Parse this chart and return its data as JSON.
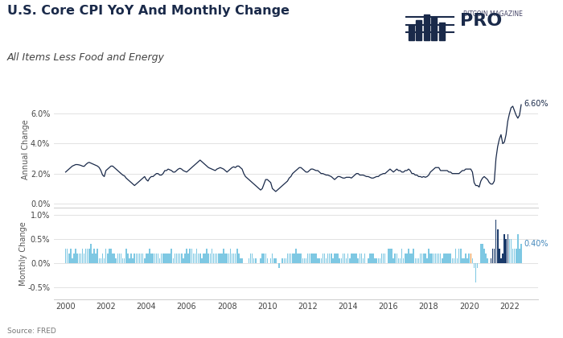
{
  "title": "U.S. Core CPI YoY And Monthly Change",
  "subtitle": "All Items Less Food and Energy",
  "source": "Source: FRED",
  "yoy_label": "Annual Change",
  "mom_label": "Monthly Change",
  "bg_color": "#ffffff",
  "line_color": "#1a2a4a",
  "bar_color_normal": "#7ec8e3",
  "bar_color_highlight": "#1a3a6a",
  "bar_color_orange": "#e8903a",
  "yoy_ylim": [
    -0.3,
    7.5
  ],
  "mom_ylim": [
    -0.75,
    1.15
  ],
  "yoy_yticks": [
    0.0,
    2.0,
    4.0,
    6.0
  ],
  "mom_yticks": [
    -0.5,
    0.0,
    0.5,
    1.0
  ],
  "annotation_yoy": "6.60%",
  "annotation_mom": "0.40%",
  "xlim": [
    1999.4,
    2023.4
  ],
  "xticks": [
    2000,
    2002,
    2004,
    2006,
    2008,
    2010,
    2012,
    2014,
    2016,
    2018,
    2020,
    2022
  ],
  "dates_yoy": [
    2000.0,
    2000.083,
    2000.167,
    2000.25,
    2000.333,
    2000.417,
    2000.5,
    2000.583,
    2000.667,
    2000.75,
    2000.833,
    2000.917,
    2001.0,
    2001.083,
    2001.167,
    2001.25,
    2001.333,
    2001.417,
    2001.5,
    2001.583,
    2001.667,
    2001.75,
    2001.833,
    2001.917,
    2002.0,
    2002.083,
    2002.167,
    2002.25,
    2002.333,
    2002.417,
    2002.5,
    2002.583,
    2002.667,
    2002.75,
    2002.833,
    2002.917,
    2003.0,
    2003.083,
    2003.167,
    2003.25,
    2003.333,
    2003.417,
    2003.5,
    2003.583,
    2003.667,
    2003.75,
    2003.833,
    2003.917,
    2004.0,
    2004.083,
    2004.167,
    2004.25,
    2004.333,
    2004.417,
    2004.5,
    2004.583,
    2004.667,
    2004.75,
    2004.833,
    2004.917,
    2005.0,
    2005.083,
    2005.167,
    2005.25,
    2005.333,
    2005.417,
    2005.5,
    2005.583,
    2005.667,
    2005.75,
    2005.833,
    2005.917,
    2006.0,
    2006.083,
    2006.167,
    2006.25,
    2006.333,
    2006.417,
    2006.5,
    2006.583,
    2006.667,
    2006.75,
    2006.833,
    2006.917,
    2007.0,
    2007.083,
    2007.167,
    2007.25,
    2007.333,
    2007.417,
    2007.5,
    2007.583,
    2007.667,
    2007.75,
    2007.833,
    2007.917,
    2008.0,
    2008.083,
    2008.167,
    2008.25,
    2008.333,
    2008.417,
    2008.5,
    2008.583,
    2008.667,
    2008.75,
    2008.833,
    2008.917,
    2009.0,
    2009.083,
    2009.167,
    2009.25,
    2009.333,
    2009.417,
    2009.5,
    2009.583,
    2009.667,
    2009.75,
    2009.833,
    2009.917,
    2010.0,
    2010.083,
    2010.167,
    2010.25,
    2010.333,
    2010.417,
    2010.5,
    2010.583,
    2010.667,
    2010.75,
    2010.833,
    2010.917,
    2011.0,
    2011.083,
    2011.167,
    2011.25,
    2011.333,
    2011.417,
    2011.5,
    2011.583,
    2011.667,
    2011.75,
    2011.833,
    2011.917,
    2012.0,
    2012.083,
    2012.167,
    2012.25,
    2012.333,
    2012.417,
    2012.5,
    2012.583,
    2012.667,
    2012.75,
    2012.833,
    2012.917,
    2013.0,
    2013.083,
    2013.167,
    2013.25,
    2013.333,
    2013.417,
    2013.5,
    2013.583,
    2013.667,
    2013.75,
    2013.833,
    2013.917,
    2014.0,
    2014.083,
    2014.167,
    2014.25,
    2014.333,
    2014.417,
    2014.5,
    2014.583,
    2014.667,
    2014.75,
    2014.833,
    2014.917,
    2015.0,
    2015.083,
    2015.167,
    2015.25,
    2015.333,
    2015.417,
    2015.5,
    2015.583,
    2015.667,
    2015.75,
    2015.833,
    2015.917,
    2016.0,
    2016.083,
    2016.167,
    2016.25,
    2016.333,
    2016.417,
    2016.5,
    2016.583,
    2016.667,
    2016.75,
    2016.833,
    2016.917,
    2017.0,
    2017.083,
    2017.167,
    2017.25,
    2017.333,
    2017.417,
    2017.5,
    2017.583,
    2017.667,
    2017.75,
    2017.833,
    2017.917,
    2018.0,
    2018.083,
    2018.167,
    2018.25,
    2018.333,
    2018.417,
    2018.5,
    2018.583,
    2018.667,
    2018.75,
    2018.833,
    2018.917,
    2019.0,
    2019.083,
    2019.167,
    2019.25,
    2019.333,
    2019.417,
    2019.5,
    2019.583,
    2019.667,
    2019.75,
    2019.833,
    2019.917,
    2020.0,
    2020.083,
    2020.167,
    2020.25,
    2020.333,
    2020.417,
    2020.5,
    2020.583,
    2020.667,
    2020.75,
    2020.833,
    2020.917,
    2021.0,
    2021.083,
    2021.167,
    2021.25,
    2021.333,
    2021.417,
    2021.5,
    2021.583,
    2021.667,
    2021.75,
    2021.833,
    2021.917,
    2022.0,
    2022.083,
    2022.167,
    2022.25,
    2022.333,
    2022.417,
    2022.5,
    2022.583
  ],
  "values_yoy": [
    2.1,
    2.2,
    2.3,
    2.4,
    2.5,
    2.55,
    2.6,
    2.6,
    2.58,
    2.55,
    2.5,
    2.48,
    2.6,
    2.7,
    2.75,
    2.7,
    2.65,
    2.6,
    2.55,
    2.5,
    2.4,
    2.2,
    1.9,
    1.8,
    2.2,
    2.3,
    2.4,
    2.5,
    2.5,
    2.4,
    2.3,
    2.2,
    2.1,
    2.0,
    1.9,
    1.85,
    1.7,
    1.6,
    1.5,
    1.4,
    1.3,
    1.2,
    1.3,
    1.4,
    1.5,
    1.6,
    1.7,
    1.8,
    1.6,
    1.5,
    1.7,
    1.8,
    1.8,
    1.9,
    2.0,
    2.0,
    1.9,
    1.9,
    2.0,
    2.2,
    2.2,
    2.3,
    2.25,
    2.2,
    2.1,
    2.1,
    2.2,
    2.3,
    2.35,
    2.3,
    2.2,
    2.15,
    2.1,
    2.2,
    2.3,
    2.4,
    2.5,
    2.6,
    2.7,
    2.8,
    2.9,
    2.8,
    2.7,
    2.6,
    2.5,
    2.4,
    2.35,
    2.3,
    2.25,
    2.2,
    2.3,
    2.35,
    2.4,
    2.35,
    2.3,
    2.2,
    2.1,
    2.2,
    2.3,
    2.4,
    2.45,
    2.4,
    2.5,
    2.5,
    2.4,
    2.3,
    2.0,
    1.8,
    1.7,
    1.6,
    1.5,
    1.4,
    1.3,
    1.2,
    1.1,
    1.0,
    0.9,
    1.0,
    1.3,
    1.6,
    1.6,
    1.5,
    1.4,
    1.0,
    0.9,
    0.8,
    0.9,
    1.0,
    1.1,
    1.2,
    1.3,
    1.4,
    1.5,
    1.7,
    1.8,
    2.0,
    2.1,
    2.2,
    2.3,
    2.4,
    2.4,
    2.3,
    2.2,
    2.1,
    2.1,
    2.2,
    2.3,
    2.3,
    2.25,
    2.2,
    2.2,
    2.1,
    2.0,
    2.0,
    1.95,
    1.9,
    1.9,
    1.85,
    1.8,
    1.7,
    1.6,
    1.7,
    1.8,
    1.8,
    1.75,
    1.7,
    1.7,
    1.75,
    1.75,
    1.75,
    1.7,
    1.8,
    1.9,
    2.0,
    2.0,
    1.9,
    1.9,
    1.9,
    1.85,
    1.8,
    1.8,
    1.75,
    1.7,
    1.7,
    1.75,
    1.8,
    1.8,
    1.9,
    1.95,
    2.0,
    2.0,
    2.1,
    2.2,
    2.3,
    2.2,
    2.1,
    2.2,
    2.3,
    2.2,
    2.2,
    2.1,
    2.1,
    2.2,
    2.2,
    2.3,
    2.2,
    2.0,
    2.0,
    1.9,
    1.9,
    1.8,
    1.8,
    1.75,
    1.8,
    1.75,
    1.8,
    1.9,
    2.1,
    2.2,
    2.3,
    2.4,
    2.4,
    2.4,
    2.2,
    2.2,
    2.2,
    2.2,
    2.2,
    2.1,
    2.1,
    2.0,
    2.0,
    2.0,
    2.0,
    2.0,
    2.1,
    2.2,
    2.2,
    2.3,
    2.3,
    2.3,
    2.3,
    2.1,
    1.4,
    1.2,
    1.2,
    1.1,
    1.5,
    1.7,
    1.8,
    1.7,
    1.6,
    1.4,
    1.3,
    1.3,
    1.5,
    3.0,
    3.8,
    4.3,
    4.6,
    4.0,
    4.1,
    4.6,
    5.5,
    6.0,
    6.4,
    6.5,
    6.2,
    5.9,
    5.7,
    5.9,
    6.6
  ],
  "dates_mom": [
    2000.0,
    2000.083,
    2000.167,
    2000.25,
    2000.333,
    2000.417,
    2000.5,
    2000.583,
    2000.667,
    2000.75,
    2000.833,
    2000.917,
    2001.0,
    2001.083,
    2001.167,
    2001.25,
    2001.333,
    2001.417,
    2001.5,
    2001.583,
    2001.667,
    2001.75,
    2001.833,
    2001.917,
    2002.0,
    2002.083,
    2002.167,
    2002.25,
    2002.333,
    2002.417,
    2002.5,
    2002.583,
    2002.667,
    2002.75,
    2002.833,
    2002.917,
    2003.0,
    2003.083,
    2003.167,
    2003.25,
    2003.333,
    2003.417,
    2003.5,
    2003.583,
    2003.667,
    2003.75,
    2003.833,
    2003.917,
    2004.0,
    2004.083,
    2004.167,
    2004.25,
    2004.333,
    2004.417,
    2004.5,
    2004.583,
    2004.667,
    2004.75,
    2004.833,
    2004.917,
    2005.0,
    2005.083,
    2005.167,
    2005.25,
    2005.333,
    2005.417,
    2005.5,
    2005.583,
    2005.667,
    2005.75,
    2005.833,
    2005.917,
    2006.0,
    2006.083,
    2006.167,
    2006.25,
    2006.333,
    2006.417,
    2006.5,
    2006.583,
    2006.667,
    2006.75,
    2006.833,
    2006.917,
    2007.0,
    2007.083,
    2007.167,
    2007.25,
    2007.333,
    2007.417,
    2007.5,
    2007.583,
    2007.667,
    2007.75,
    2007.833,
    2007.917,
    2008.0,
    2008.083,
    2008.167,
    2008.25,
    2008.333,
    2008.417,
    2008.5,
    2008.583,
    2008.667,
    2008.75,
    2008.833,
    2008.917,
    2009.0,
    2009.083,
    2009.167,
    2009.25,
    2009.333,
    2009.417,
    2009.5,
    2009.583,
    2009.667,
    2009.75,
    2009.833,
    2009.917,
    2010.0,
    2010.083,
    2010.167,
    2010.25,
    2010.333,
    2010.417,
    2010.5,
    2010.583,
    2010.667,
    2010.75,
    2010.833,
    2010.917,
    2011.0,
    2011.083,
    2011.167,
    2011.25,
    2011.333,
    2011.417,
    2011.5,
    2011.583,
    2011.667,
    2011.75,
    2011.833,
    2011.917,
    2012.0,
    2012.083,
    2012.167,
    2012.25,
    2012.333,
    2012.417,
    2012.5,
    2012.583,
    2012.667,
    2012.75,
    2012.833,
    2012.917,
    2013.0,
    2013.083,
    2013.167,
    2013.25,
    2013.333,
    2013.417,
    2013.5,
    2013.583,
    2013.667,
    2013.75,
    2013.833,
    2013.917,
    2014.0,
    2014.083,
    2014.167,
    2014.25,
    2014.333,
    2014.417,
    2014.5,
    2014.583,
    2014.667,
    2014.75,
    2014.833,
    2014.917,
    2015.0,
    2015.083,
    2015.167,
    2015.25,
    2015.333,
    2015.417,
    2015.5,
    2015.583,
    2015.667,
    2015.75,
    2015.833,
    2015.917,
    2016.0,
    2016.083,
    2016.167,
    2016.25,
    2016.333,
    2016.417,
    2016.5,
    2016.583,
    2016.667,
    2016.75,
    2016.833,
    2016.917,
    2017.0,
    2017.083,
    2017.167,
    2017.25,
    2017.333,
    2017.417,
    2017.5,
    2017.583,
    2017.667,
    2017.75,
    2017.833,
    2017.917,
    2018.0,
    2018.083,
    2018.167,
    2018.25,
    2018.333,
    2018.417,
    2018.5,
    2018.583,
    2018.667,
    2018.75,
    2018.833,
    2018.917,
    2019.0,
    2019.083,
    2019.167,
    2019.25,
    2019.333,
    2019.417,
    2019.5,
    2019.583,
    2019.667,
    2019.75,
    2019.833,
    2019.917,
    2020.0,
    2020.083,
    2020.167,
    2020.25,
    2020.333,
    2020.417,
    2020.5,
    2020.583,
    2020.667,
    2020.75,
    2020.833,
    2020.917,
    2021.0,
    2021.083,
    2021.167,
    2021.25,
    2021.333,
    2021.417,
    2021.5,
    2021.583,
    2021.667,
    2021.75,
    2021.833,
    2021.917,
    2022.0,
    2022.083,
    2022.167,
    2022.25,
    2022.333,
    2022.417,
    2022.5,
    2022.583
  ],
  "values_mom": [
    0.3,
    0.3,
    0.2,
    0.3,
    0.1,
    0.2,
    0.3,
    0.2,
    0.2,
    0.2,
    0.3,
    0.2,
    0.3,
    0.3,
    0.3,
    0.4,
    0.2,
    0.3,
    0.2,
    0.3,
    0.1,
    0.1,
    0.2,
    0.1,
    0.3,
    0.2,
    0.3,
    0.3,
    0.2,
    0.2,
    0.1,
    0.2,
    0.2,
    0.2,
    0.1,
    0.1,
    0.3,
    0.2,
    0.1,
    0.2,
    0.1,
    0.2,
    0.2,
    0.2,
    0.2,
    0.2,
    0.2,
    0.1,
    0.2,
    0.2,
    0.3,
    0.2,
    0.2,
    0.2,
    0.2,
    0.2,
    0.1,
    0.2,
    0.2,
    0.2,
    0.2,
    0.2,
    0.2,
    0.3,
    0.1,
    0.2,
    0.2,
    0.2,
    0.2,
    0.2,
    0.1,
    0.2,
    0.3,
    0.2,
    0.3,
    0.3,
    0.2,
    0.2,
    0.3,
    0.2,
    0.2,
    0.1,
    0.2,
    0.2,
    0.3,
    0.2,
    0.2,
    0.3,
    0.2,
    0.2,
    0.2,
    0.2,
    0.2,
    0.2,
    0.3,
    0.2,
    0.2,
    0.2,
    0.3,
    0.2,
    0.2,
    0.2,
    0.3,
    0.2,
    0.1,
    0.1,
    0.0,
    0.0,
    0.0,
    0.1,
    0.2,
    0.2,
    0.1,
    0.1,
    0.0,
    0.0,
    0.1,
    0.2,
    0.2,
    0.2,
    0.1,
    0.0,
    0.1,
    0.2,
    0.1,
    0.1,
    0.0,
    -0.1,
    0.0,
    0.1,
    0.1,
    0.1,
    0.2,
    0.2,
    0.2,
    0.2,
    0.2,
    0.3,
    0.2,
    0.2,
    0.2,
    0.1,
    0.1,
    0.1,
    0.2,
    0.2,
    0.2,
    0.2,
    0.2,
    0.2,
    0.1,
    0.1,
    0.1,
    0.2,
    0.2,
    0.1,
    0.2,
    0.2,
    0.2,
    0.1,
    0.2,
    0.2,
    0.2,
    0.1,
    0.1,
    0.2,
    0.2,
    0.1,
    0.2,
    0.1,
    0.2,
    0.2,
    0.2,
    0.2,
    0.1,
    0.2,
    0.2,
    0.1,
    0.2,
    0.0,
    0.1,
    0.2,
    0.2,
    0.2,
    0.1,
    0.1,
    0.1,
    0.1,
    0.2,
    0.2,
    0.2,
    0.0,
    0.3,
    0.3,
    0.3,
    0.1,
    0.2,
    0.2,
    0.1,
    0.1,
    0.3,
    0.1,
    0.2,
    0.2,
    0.3,
    0.2,
    0.2,
    0.3,
    0.1,
    0.1,
    0.1,
    0.2,
    0.2,
    0.2,
    0.2,
    0.1,
    0.3,
    0.2,
    0.2,
    0.2,
    0.2,
    0.2,
    0.2,
    0.2,
    0.1,
    0.2,
    0.2,
    0.2,
    0.2,
    0.2,
    0.1,
    0.1,
    0.3,
    0.1,
    0.3,
    0.3,
    0.1,
    0.1,
    0.2,
    0.1,
    0.2,
    0.2,
    0.1,
    -0.1,
    -0.4,
    -0.1,
    0.0,
    0.4,
    0.4,
    0.3,
    0.2,
    0.1,
    0.0,
    0.1,
    0.3,
    0.3,
    0.9,
    0.7,
    0.3,
    0.1,
    0.2,
    0.6,
    0.5,
    0.6,
    0.5,
    0.5,
    0.3,
    0.3,
    0.3,
    0.6,
    0.3,
    0.4
  ],
  "highlight_indices_dark": [
    252,
    253,
    254,
    255,
    256,
    257,
    258,
    259,
    260,
    261,
    262,
    263
  ],
  "orange_indices": [
    106,
    241
  ]
}
